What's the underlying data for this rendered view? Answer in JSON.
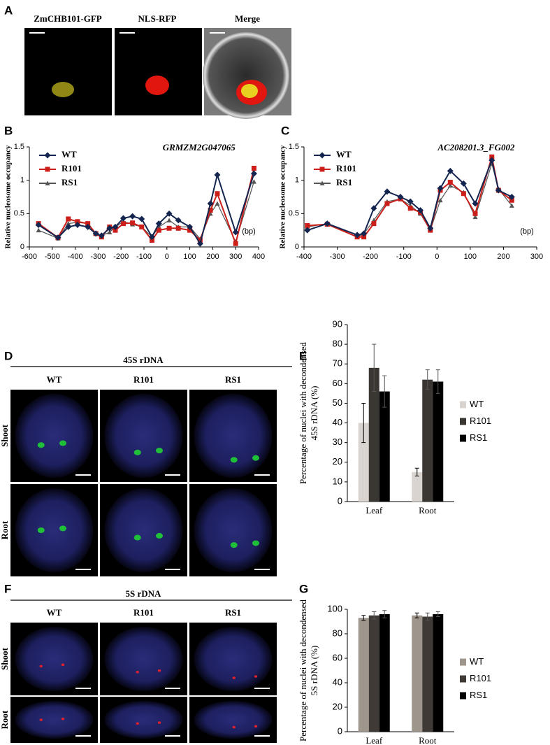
{
  "figure": {
    "panel_labels": [
      "A",
      "B",
      "C",
      "D",
      "E",
      "F",
      "G"
    ],
    "panel_a": {
      "titles": [
        "ZmCHB101-GFP",
        "NLS-RFP",
        "Merge"
      ]
    },
    "panel_d": {
      "title": "45S rDNA",
      "columns": [
        "WT",
        "R101",
        "RS1"
      ],
      "rows": [
        "Shoot",
        "Root"
      ]
    },
    "panel_f": {
      "title": "5S rDNA",
      "columns": [
        "WT",
        "R101",
        "RS1"
      ],
      "rows": [
        "Shoot",
        "Root"
      ]
    }
  },
  "chart_data": [
    {
      "type": "line",
      "title": "GRMZM2G047065",
      "ylabel": [
        "Relative nucleosome occupancy"
      ],
      "xlabel": "(bp)",
      "legend": "upper left",
      "x": [
        -560,
        -475,
        -430,
        -390,
        -345,
        -310,
        -285,
        -250,
        -225,
        -190,
        -150,
        -110,
        -65,
        -35,
        10,
        50,
        100,
        145,
        190,
        220,
        300,
        380
      ],
      "series": [
        {
          "name": "WT",
          "color": "#14254f",
          "marker": "diamond",
          "values": [
            0.33,
            0.14,
            0.3,
            0.33,
            0.3,
            0.2,
            0.17,
            0.28,
            0.3,
            0.43,
            0.46,
            0.42,
            0.15,
            0.35,
            0.5,
            0.4,
            0.3,
            0.05,
            0.65,
            1.08,
            0.22,
            1.1
          ]
        },
        {
          "name": "R101",
          "color": "#cc1f1a",
          "marker": "square",
          "values": [
            0.35,
            0.14,
            0.42,
            0.38,
            0.35,
            0.2,
            0.15,
            0.3,
            0.25,
            0.35,
            0.36,
            0.3,
            0.1,
            0.25,
            0.28,
            0.28,
            0.25,
            0.1,
            0.55,
            0.8,
            0.05,
            1.18
          ]
        },
        {
          "name": "RS1",
          "color": "#555555",
          "marker": "triangle",
          "values": [
            0.25,
            0.13,
            0.35,
            0.37,
            0.35,
            0.2,
            0.17,
            0.22,
            0.3,
            0.38,
            0.34,
            0.3,
            0.15,
            0.3,
            0.4,
            0.3,
            0.3,
            0.12,
            0.5,
            0.65,
            0.08,
            0.98
          ]
        }
      ],
      "xlim": [
        -600,
        400
      ],
      "xticks": [
        -600,
        -500,
        -400,
        -300,
        -200,
        -100,
        0,
        100,
        200,
        300,
        400
      ],
      "ylim": [
        0,
        1.5
      ],
      "yticks": [
        0,
        0.5,
        1,
        1.5
      ]
    },
    {
      "type": "line",
      "title": "AC208201.3_FG002",
      "ylabel": [
        "Relative nucleosome occupancy"
      ],
      "xlabel": "(bp)",
      "legend": "upper left",
      "x": [
        -390,
        -330,
        -240,
        -220,
        -190,
        -150,
        -110,
        -80,
        -50,
        -20,
        10,
        40,
        80,
        115,
        165,
        185,
        225
      ],
      "series": [
        {
          "name": "WT",
          "color": "#14254f",
          "marker": "diamond",
          "values": [
            0.25,
            0.35,
            0.18,
            0.2,
            0.58,
            0.83,
            0.75,
            0.68,
            0.55,
            0.28,
            0.88,
            1.14,
            0.95,
            0.65,
            1.3,
            0.85,
            0.75
          ]
        },
        {
          "name": "R101",
          "color": "#cc1f1a",
          "marker": "square",
          "values": [
            0.32,
            0.34,
            0.15,
            0.15,
            0.35,
            0.65,
            0.72,
            0.58,
            0.52,
            0.25,
            0.85,
            0.97,
            0.8,
            0.5,
            1.35,
            0.85,
            0.7
          ]
        },
        {
          "name": "RS1",
          "color": "#555555",
          "marker": "triangle",
          "values": [
            0.3,
            0.35,
            0.15,
            0.2,
            0.4,
            0.68,
            0.72,
            0.62,
            0.5,
            0.25,
            0.7,
            0.92,
            0.82,
            0.45,
            1.25,
            0.87,
            0.62
          ]
        }
      ],
      "xlim": [
        -400,
        300
      ],
      "xticks": [
        -400,
        -300,
        -200,
        -100,
        0,
        100,
        200,
        300
      ],
      "ylim": [
        0,
        1.5
      ],
      "yticks": [
        0,
        0.5,
        1,
        1.5
      ]
    },
    {
      "type": "bar",
      "ylabel": [
        "Percentage of nuclei with decondensed",
        "45S rDNA (%)"
      ],
      "legend": "right",
      "categories": [
        "Leaf",
        "Root"
      ],
      "series": [
        {
          "name": "WT",
          "color": "#d9d4cf",
          "values": [
            40,
            15
          ],
          "errors": [
            10,
            2
          ]
        },
        {
          "name": "R101",
          "color": "#3a3632",
          "values": [
            68,
            62
          ],
          "errors": [
            12,
            5
          ]
        },
        {
          "name": "RS1",
          "color": "#000000",
          "values": [
            56,
            61
          ],
          "errors": [
            8,
            6
          ]
        }
      ],
      "ylim": [
        0,
        90
      ],
      "yticks": [
        0,
        10,
        20,
        30,
        40,
        50,
        60,
        70,
        80,
        90
      ]
    },
    {
      "type": "bar",
      "ylabel": [
        "Percentage of nuclei with decondensed",
        "5S rDNA (%)"
      ],
      "legend": "right",
      "categories": [
        "Leaf",
        "Root"
      ],
      "series": [
        {
          "name": "WT",
          "color": "#9e958d",
          "values": [
            93,
            95
          ],
          "errors": [
            2,
            2
          ]
        },
        {
          "name": "R101",
          "color": "#3f3a35",
          "values": [
            95,
            94
          ],
          "errors": [
            3,
            3
          ]
        },
        {
          "name": "RS1",
          "color": "#000000",
          "values": [
            96,
            96
          ],
          "errors": [
            3,
            2
          ]
        }
      ],
      "ylim": [
        0,
        100
      ],
      "yticks": [
        0,
        20,
        40,
        60,
        80,
        100
      ]
    }
  ]
}
